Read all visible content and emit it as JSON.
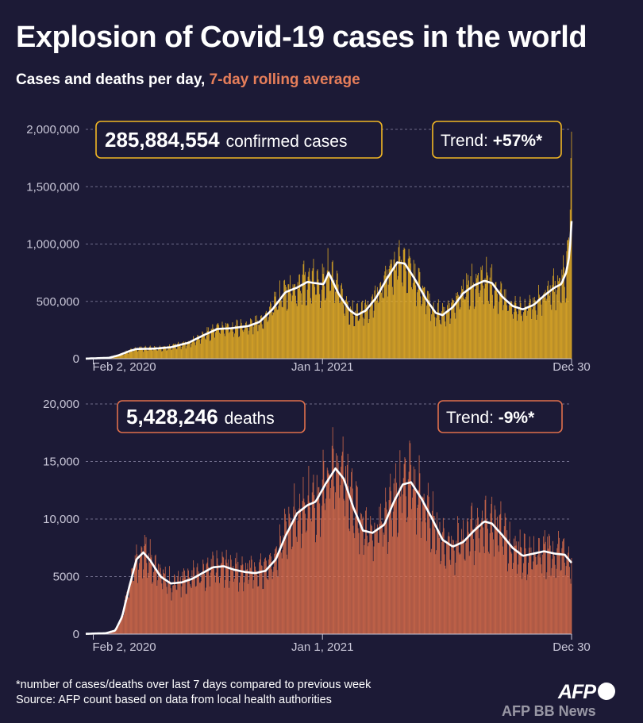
{
  "title": "Explosion of Covid-19 cases in the world",
  "subtitle": {
    "main": "Cases and deaths per day, ",
    "accent": "7-day rolling average"
  },
  "colors": {
    "background": "#1c1a36",
    "cases": "#f2b724",
    "deaths": "#e0704c",
    "average": "#ffffff"
  },
  "footnote": {
    "line1": "*number of cases/deaths over last 7 days compared to previous week",
    "line2": "Source: AFP count based on data from local health authorities"
  },
  "logo": "AFP",
  "watermark": "AFP BB News",
  "chart_data": [
    {
      "type": "bar",
      "id": "cases",
      "callout": {
        "value": "285,884,554",
        "label": "confirmed cases"
      },
      "trend": {
        "label": "Trend: ",
        "value": "+57%*"
      },
      "ylim": [
        0,
        2000000
      ],
      "yticks": [
        0,
        500000,
        1000000,
        1500000,
        2000000
      ],
      "ytick_labels": [
        "0",
        "500,000",
        "1,000,000",
        "1,500,000",
        "2,000,000"
      ],
      "xticks": [
        {
          "x": "2020-02-02",
          "label": "Feb 2, 2020"
        },
        {
          "x": "2021-01-01",
          "label": "Jan 1, 2021"
        },
        {
          "x": "2021-12-30",
          "label": "Dec 30"
        }
      ],
      "x_range": [
        "2020-01-22",
        "2021-12-30"
      ],
      "rolling_average": [
        [
          "2020-01-22",
          1000
        ],
        [
          "2020-02-02",
          3000
        ],
        [
          "2020-02-25",
          8000
        ],
        [
          "2020-03-10",
          30000
        ],
        [
          "2020-03-25",
          65000
        ],
        [
          "2020-04-05",
          85000
        ],
        [
          "2020-05-01",
          88000
        ],
        [
          "2020-05-25",
          100000
        ],
        [
          "2020-06-20",
          140000
        ],
        [
          "2020-07-10",
          200000
        ],
        [
          "2020-08-01",
          260000
        ],
        [
          "2020-08-20",
          265000
        ],
        [
          "2020-09-15",
          285000
        ],
        [
          "2020-10-01",
          320000
        ],
        [
          "2020-10-20",
          430000
        ],
        [
          "2020-11-08",
          580000
        ],
        [
          "2020-11-25",
          620000
        ],
        [
          "2020-12-10",
          670000
        ],
        [
          "2020-12-20",
          660000
        ],
        [
          "2021-01-03",
          650000
        ],
        [
          "2021-01-10",
          750000
        ],
        [
          "2021-01-25",
          560000
        ],
        [
          "2021-02-10",
          420000
        ],
        [
          "2021-02-20",
          380000
        ],
        [
          "2021-03-05",
          420000
        ],
        [
          "2021-03-20",
          530000
        ],
        [
          "2021-04-05",
          700000
        ],
        [
          "2021-04-20",
          840000
        ],
        [
          "2021-05-01",
          830000
        ],
        [
          "2021-05-15",
          700000
        ],
        [
          "2021-06-01",
          520000
        ],
        [
          "2021-06-15",
          400000
        ],
        [
          "2021-06-25",
          380000
        ],
        [
          "2021-07-10",
          450000
        ],
        [
          "2021-07-25",
          570000
        ],
        [
          "2021-08-10",
          640000
        ],
        [
          "2021-08-25",
          680000
        ],
        [
          "2021-09-05",
          660000
        ],
        [
          "2021-09-20",
          540000
        ],
        [
          "2021-10-05",
          460000
        ],
        [
          "2021-10-20",
          430000
        ],
        [
          "2021-11-05",
          470000
        ],
        [
          "2021-11-20",
          550000
        ],
        [
          "2021-12-05",
          620000
        ],
        [
          "2021-12-15",
          650000
        ],
        [
          "2021-12-22",
          750000
        ],
        [
          "2021-12-27",
          900000
        ],
        [
          "2021-12-30",
          1200000
        ]
      ],
      "daily_spikes": [
        [
          "2021-12-28",
          1300000
        ],
        [
          "2021-12-29",
          1750000
        ],
        [
          "2021-12-30",
          1980000
        ]
      ]
    },
    {
      "type": "bar",
      "id": "deaths",
      "callout": {
        "value": "5,428,246",
        "label": "deaths"
      },
      "trend": {
        "label": "Trend: ",
        "value": "-9%*"
      },
      "ylim": [
        0,
        20000
      ],
      "yticks": [
        0,
        5000,
        10000,
        15000,
        20000
      ],
      "ytick_labels": [
        "0",
        "5000",
        "10,000",
        "15,000",
        "20,000"
      ],
      "xticks": [
        {
          "x": "2020-02-02",
          "label": "Feb 2, 2020"
        },
        {
          "x": "2021-01-01",
          "label": "Jan 1, 2021"
        },
        {
          "x": "2021-12-30",
          "label": "Dec 30"
        }
      ],
      "x_range": [
        "2020-01-22",
        "2021-12-30"
      ],
      "rolling_average": [
        [
          "2020-01-22",
          20
        ],
        [
          "2020-02-02",
          50
        ],
        [
          "2020-02-20",
          80
        ],
        [
          "2020-03-05",
          300
        ],
        [
          "2020-03-15",
          1500
        ],
        [
          "2020-03-25",
          4000
        ],
        [
          "2020-04-05",
          6500
        ],
        [
          "2020-04-15",
          7100
        ],
        [
          "2020-04-25",
          6400
        ],
        [
          "2020-05-10",
          5000
        ],
        [
          "2020-05-25",
          4400
        ],
        [
          "2020-06-10",
          4500
        ],
        [
          "2020-06-25",
          4800
        ],
        [
          "2020-07-10",
          5300
        ],
        [
          "2020-07-25",
          5800
        ],
        [
          "2020-08-10",
          5900
        ],
        [
          "2020-08-25",
          5600
        ],
        [
          "2020-09-10",
          5400
        ],
        [
          "2020-09-25",
          5300
        ],
        [
          "2020-10-10",
          5500
        ],
        [
          "2020-10-25",
          6500
        ],
        [
          "2020-11-08",
          8500
        ],
        [
          "2020-11-25",
          10500
        ],
        [
          "2020-12-10",
          11200
        ],
        [
          "2020-12-22",
          11500
        ],
        [
          "2021-01-05",
          13000
        ],
        [
          "2021-01-20",
          14400
        ],
        [
          "2021-02-01",
          13500
        ],
        [
          "2021-02-15",
          11000
        ],
        [
          "2021-03-01",
          9000
        ],
        [
          "2021-03-15",
          8800
        ],
        [
          "2021-04-01",
          9500
        ],
        [
          "2021-04-15",
          11500
        ],
        [
          "2021-04-28",
          13000
        ],
        [
          "2021-05-10",
          13200
        ],
        [
          "2021-05-25",
          11800
        ],
        [
          "2021-06-10",
          10000
        ],
        [
          "2021-06-25",
          8200
        ],
        [
          "2021-07-10",
          7600
        ],
        [
          "2021-07-25",
          8000
        ],
        [
          "2021-08-10",
          9000
        ],
        [
          "2021-08-25",
          9800
        ],
        [
          "2021-09-05",
          9600
        ],
        [
          "2021-09-20",
          8600
        ],
        [
          "2021-10-05",
          7500
        ],
        [
          "2021-10-20",
          6800
        ],
        [
          "2021-11-05",
          7000
        ],
        [
          "2021-11-20",
          7200
        ],
        [
          "2021-12-05",
          7000
        ],
        [
          "2021-12-20",
          6900
        ],
        [
          "2021-12-30",
          6200
        ]
      ]
    }
  ]
}
